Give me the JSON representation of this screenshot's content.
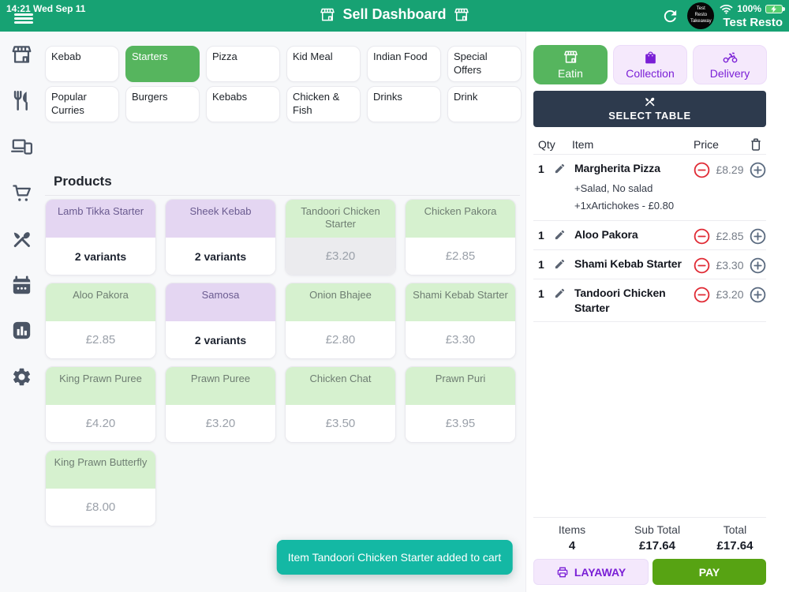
{
  "statusbar": {
    "time": "14:21",
    "date": "Wed Sep 11"
  },
  "header": {
    "title": "Sell Dashboard",
    "battery_pct": "100%",
    "account_name": "Test Resto",
    "avatar_lines": [
      "Test",
      "Resto",
      "Takeaway"
    ],
    "icons": [
      "hamburger-menu-icon",
      "store-icon",
      "refresh-icon",
      "wifi-icon",
      "battery-charging-icon"
    ]
  },
  "sidebar": {
    "icons": [
      "store",
      "utensils",
      "devices",
      "shopping-cart",
      "crossed-cutlery",
      "calendar",
      "bar-chart",
      "settings-gear"
    ]
  },
  "categories": {
    "items": [
      {
        "label": "Kebab",
        "selected": false
      },
      {
        "label": "Starters",
        "selected": true
      },
      {
        "label": "Pizza",
        "selected": false
      },
      {
        "label": "Kid Meal",
        "selected": false
      },
      {
        "label": "Indian Food",
        "selected": false
      },
      {
        "label": "Special Offers",
        "selected": false
      },
      {
        "label": "Popular Curries",
        "selected": false
      },
      {
        "label": "Burgers",
        "selected": false
      },
      {
        "label": "Kebabs",
        "selected": false
      },
      {
        "label": "Chicken & Fish",
        "selected": false
      },
      {
        "label": "Drinks",
        "selected": false
      },
      {
        "label": "Drink",
        "selected": false
      }
    ]
  },
  "products": {
    "title": "Products",
    "items": [
      {
        "name": "Lamb Tikka Starter",
        "detail": "2 variants",
        "color": "purple",
        "pressed": false
      },
      {
        "name": "Sheek Kebab",
        "detail": "2 variants",
        "color": "purple",
        "pressed": false
      },
      {
        "name": "Tandoori Chicken Starter",
        "detail": "£3.20",
        "color": "green",
        "pressed": true
      },
      {
        "name": "Chicken Pakora",
        "detail": "£2.85",
        "color": "green",
        "pressed": false
      },
      {
        "name": "Aloo Pakora",
        "detail": "£2.85",
        "color": "green",
        "pressed": false
      },
      {
        "name": "Samosa",
        "detail": "2 variants",
        "color": "purple",
        "pressed": false
      },
      {
        "name": "Onion Bhajee",
        "detail": "£2.80",
        "color": "green",
        "pressed": false
      },
      {
        "name": "Shami Kebab Starter",
        "detail": "£3.30",
        "color": "green",
        "pressed": false
      },
      {
        "name": "King Prawn Puree",
        "detail": "£4.20",
        "color": "green",
        "pressed": false
      },
      {
        "name": "Prawn Puree",
        "detail": "£3.20",
        "color": "green",
        "pressed": false
      },
      {
        "name": "Chicken Chat",
        "detail": "£3.50",
        "color": "green",
        "pressed": false
      },
      {
        "name": "Prawn Puri",
        "detail": "£3.95",
        "color": "green",
        "pressed": false
      },
      {
        "name": "King Prawn Butterfly",
        "detail": "£8.00",
        "color": "green",
        "pressed": false
      }
    ]
  },
  "order_types": [
    {
      "label": "Eatin",
      "icon": "store-icon",
      "selected": true
    },
    {
      "label": "Collection",
      "icon": "shopping-bag-icon",
      "selected": false
    },
    {
      "label": "Delivery",
      "icon": "motorcycle-icon",
      "selected": false
    }
  ],
  "select_table": {
    "label": "SELECT TABLE"
  },
  "cart": {
    "columns": {
      "qty": "Qty",
      "item": "Item",
      "price": "Price"
    },
    "rows": [
      {
        "qty": "1",
        "name": "Margherita Pizza",
        "modifiers": [
          "+Salad, No salad",
          "+1xArtichokes - £0.80"
        ],
        "price": "£8.29"
      },
      {
        "qty": "1",
        "name": "Aloo Pakora",
        "modifiers": [],
        "price": "£2.85"
      },
      {
        "qty": "1",
        "name": "Shami Kebab Starter",
        "modifiers": [],
        "price": "£3.30"
      },
      {
        "qty": "1",
        "name": "Tandoori Chicken Starter",
        "modifiers": [],
        "price": "£3.20"
      }
    ]
  },
  "totals": {
    "items_label": "Items",
    "items_value": "4",
    "subtotal_label": "Sub Total",
    "subtotal_value": "£17.64",
    "total_label": "Total",
    "total_value": "£17.64"
  },
  "actions": {
    "layaway": "LAYAWAY",
    "pay": "PAY"
  },
  "toast": {
    "message": "Item Tandoori Chicken Starter added to cart"
  },
  "colors": {
    "header_green": "#17a273",
    "selected_green": "#56b55e",
    "pay_green": "#57a313",
    "toast_teal": "#14b8a4",
    "purple_accent": "#7a1fd6",
    "lavender_bg": "#f5e9fc",
    "green_card": "#d6f1cf",
    "purple_card": "#e4d6f2",
    "navy_bar": "#2d3a4d",
    "danger_red": "#e02b35",
    "slate_icon": "#4b5565"
  }
}
